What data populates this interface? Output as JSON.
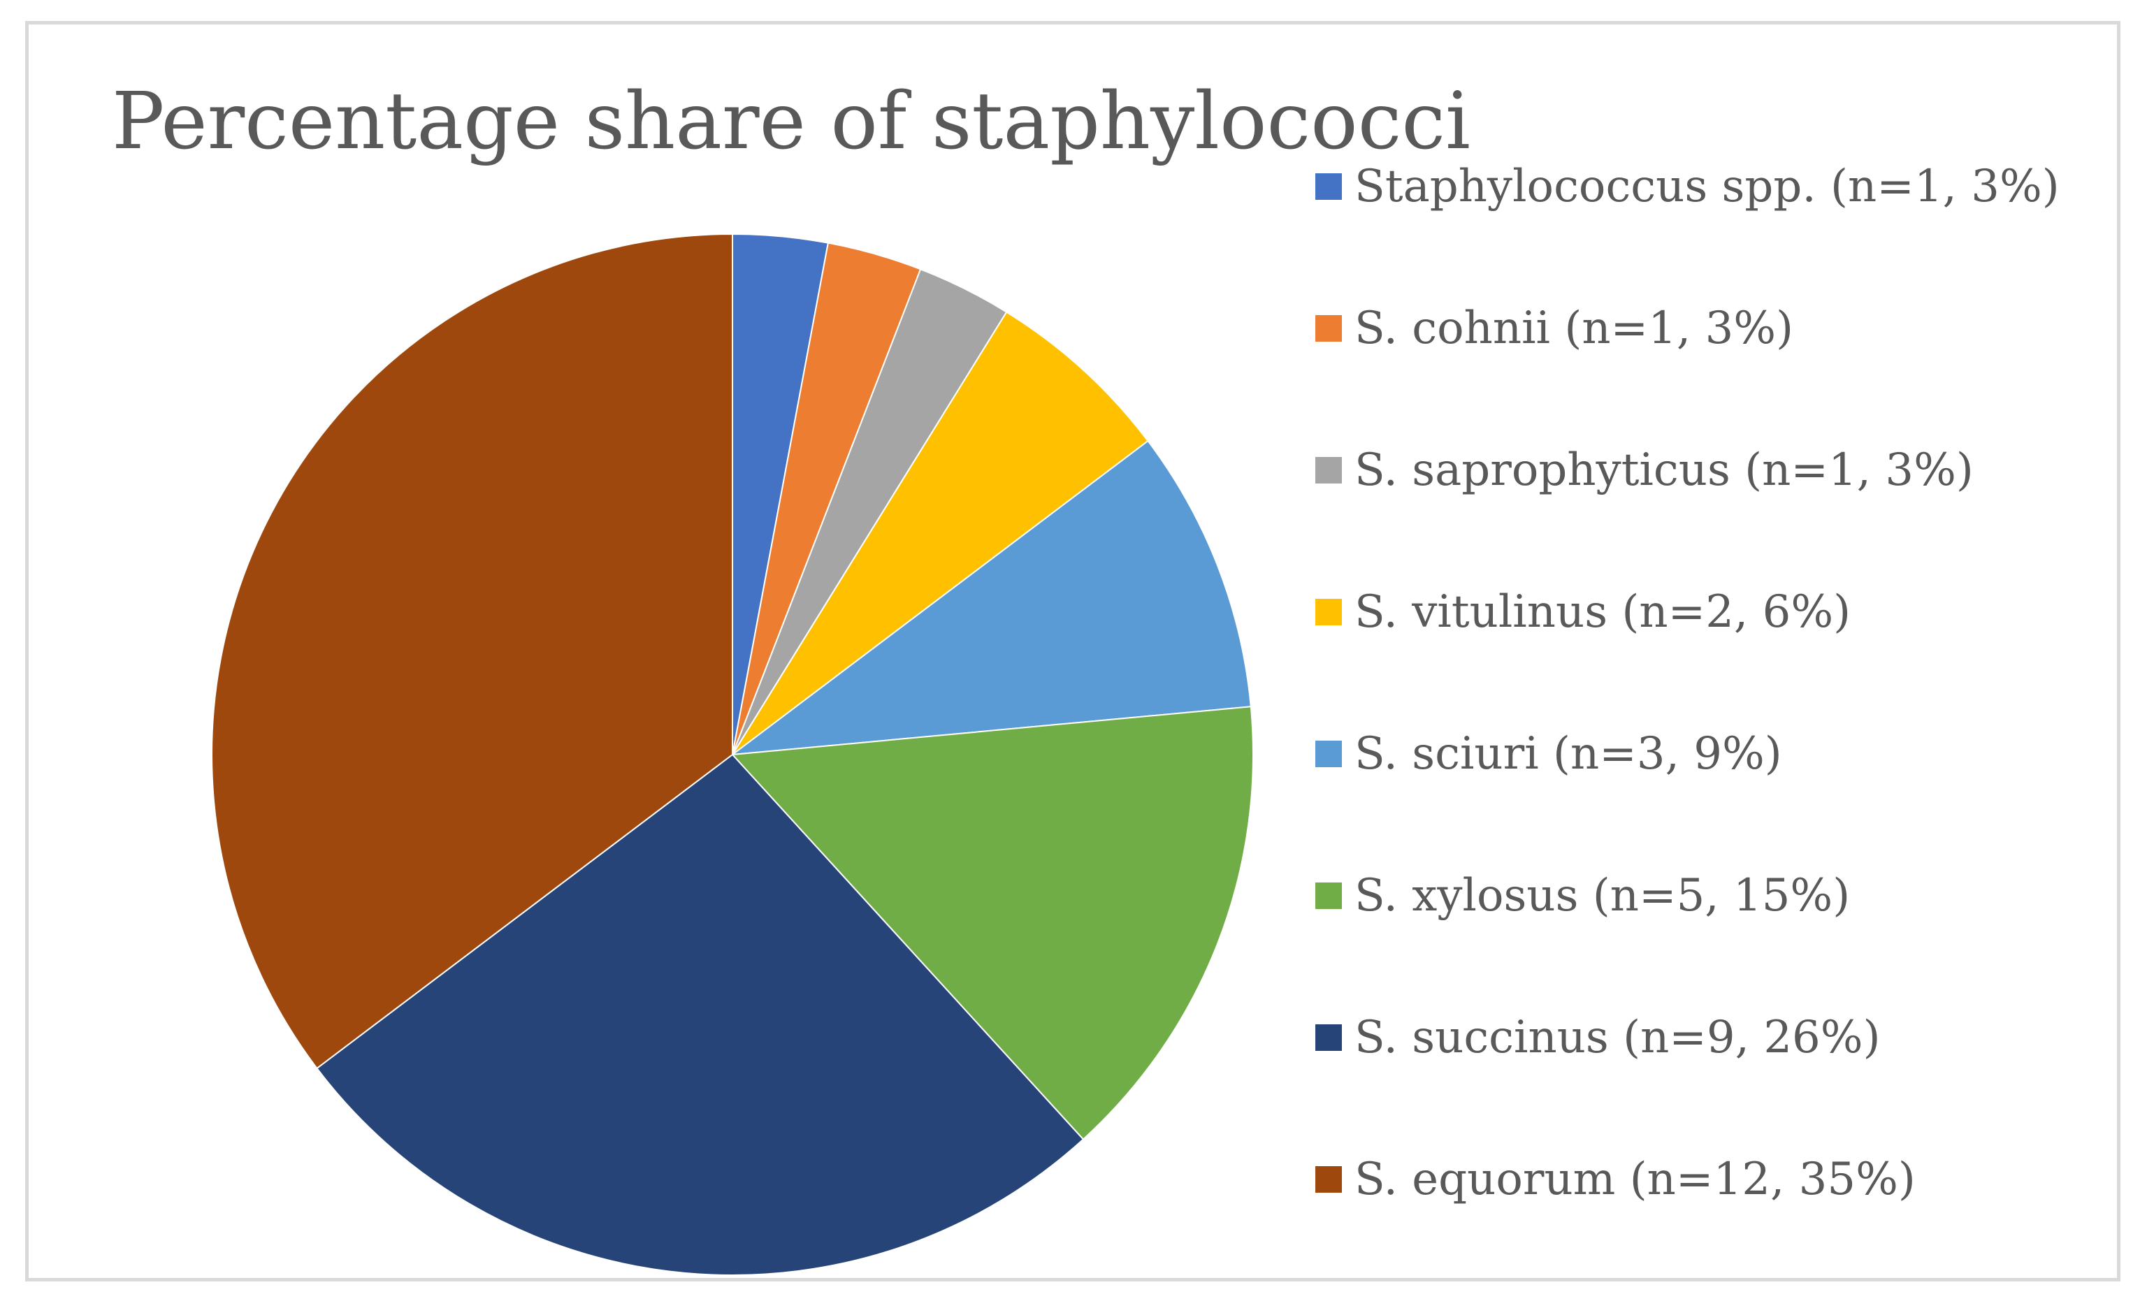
{
  "chart_data": {
    "type": "pie",
    "title": "Percentage share of staphylococci",
    "legend_position": "right",
    "start_angle_deg": 0,
    "direction": "clockwise",
    "slices": [
      {
        "label": "Staphylococcus spp. (n=1, 3%)",
        "value": 1,
        "percent": 3,
        "color": "#4472C4"
      },
      {
        "label": "S. cohnii (n=1, 3%)",
        "value": 1,
        "percent": 3,
        "color": "#ED7D31"
      },
      {
        "label": "S. saprophyticus (n=1, 3%)",
        "value": 1,
        "percent": 3,
        "color": "#A5A5A5"
      },
      {
        "label": "S. vitulinus (n=2, 6%)",
        "value": 2,
        "percent": 6,
        "color": "#FFC000"
      },
      {
        "label": "S. sciuri (n=3, 9%)",
        "value": 3,
        "percent": 9,
        "color": "#5B9BD5"
      },
      {
        "label": "S. xylosus (n=5, 15%)",
        "value": 5,
        "percent": 15,
        "color": "#70AD47"
      },
      {
        "label": "S. succinus (n=9, 26%)",
        "value": 9,
        "percent": 26,
        "color": "#264478"
      },
      {
        "label": "S. equorum (n=12, 35%)",
        "value": 12,
        "percent": 35,
        "color": "#9E480E"
      }
    ]
  }
}
